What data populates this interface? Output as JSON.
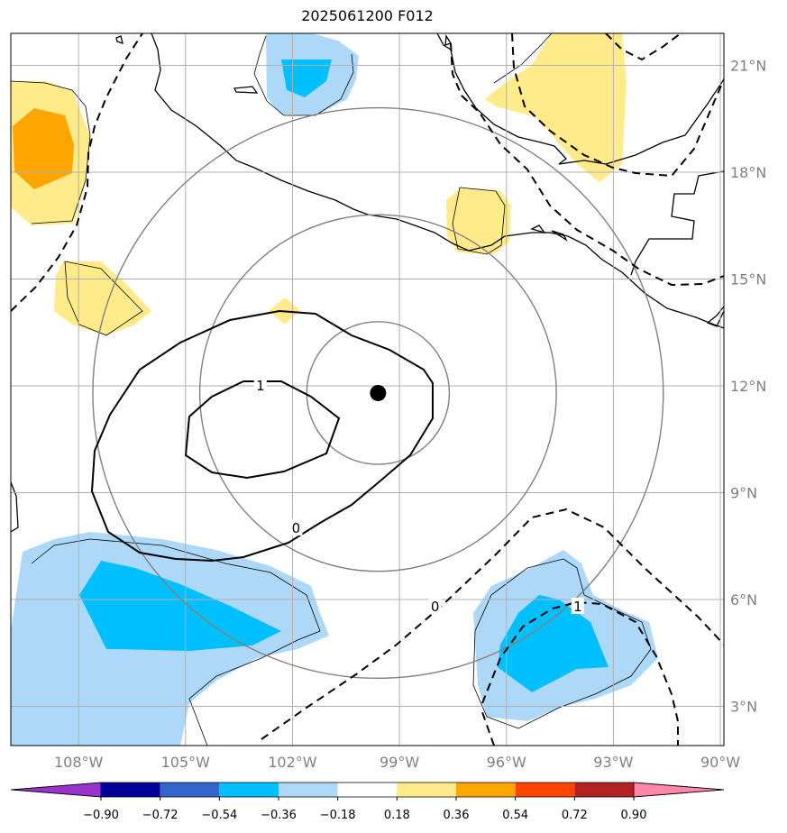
{
  "title": "2025061200 F012",
  "chart_data": {
    "type": "contour",
    "projection": "lat-lon map",
    "lon_range": [
      -109.9,
      -89.9
    ],
    "lat_range": [
      1.9,
      21.9
    ],
    "lon_ticks": [
      -108,
      -105,
      -102,
      -99,
      -96,
      -93,
      -90
    ],
    "lon_tick_labels": [
      "108°W",
      "105°W",
      "102°W",
      "99°W",
      "96°W",
      "93°W",
      "90°W"
    ],
    "lat_ticks": [
      3,
      6,
      9,
      12,
      15,
      18,
      21
    ],
    "lat_tick_labels": [
      "3°N",
      "6°N",
      "9°N",
      "12°N",
      "15°N",
      "18°N",
      "21°N"
    ],
    "grid": true,
    "center_point": {
      "lon": -99.6,
      "lat": 11.8
    },
    "range_rings_deg": [
      2,
      5,
      8
    ],
    "contour_labels": [
      {
        "text": "1",
        "lon": -102.9,
        "lat": 12.0
      },
      {
        "text": "0",
        "lon": -101.9,
        "lat": 8.0
      },
      {
        "text": "0",
        "lon": -98.0,
        "lat": 5.8
      },
      {
        "text": "1",
        "lon": -94.0,
        "lat": 5.8
      }
    ],
    "colorbar": {
      "levels": [
        -0.9,
        -0.72,
        -0.54,
        -0.36,
        -0.18,
        0.18,
        0.36,
        0.54,
        0.72,
        0.9
      ],
      "tick_labels": [
        "−0.90",
        "−0.72",
        "−0.54",
        "−0.36",
        "−0.18",
        "0.18",
        "0.36",
        "0.54",
        "0.72",
        "0.90"
      ],
      "colors": [
        "#9933cc",
        "#000099",
        "#3366cc",
        "#00bfff",
        "#add8f7",
        "#ffffff",
        "#ffeb8a",
        "#ffa500",
        "#ff4500",
        "#b22222",
        "#ff88aa"
      ],
      "extend": "both"
    }
  }
}
